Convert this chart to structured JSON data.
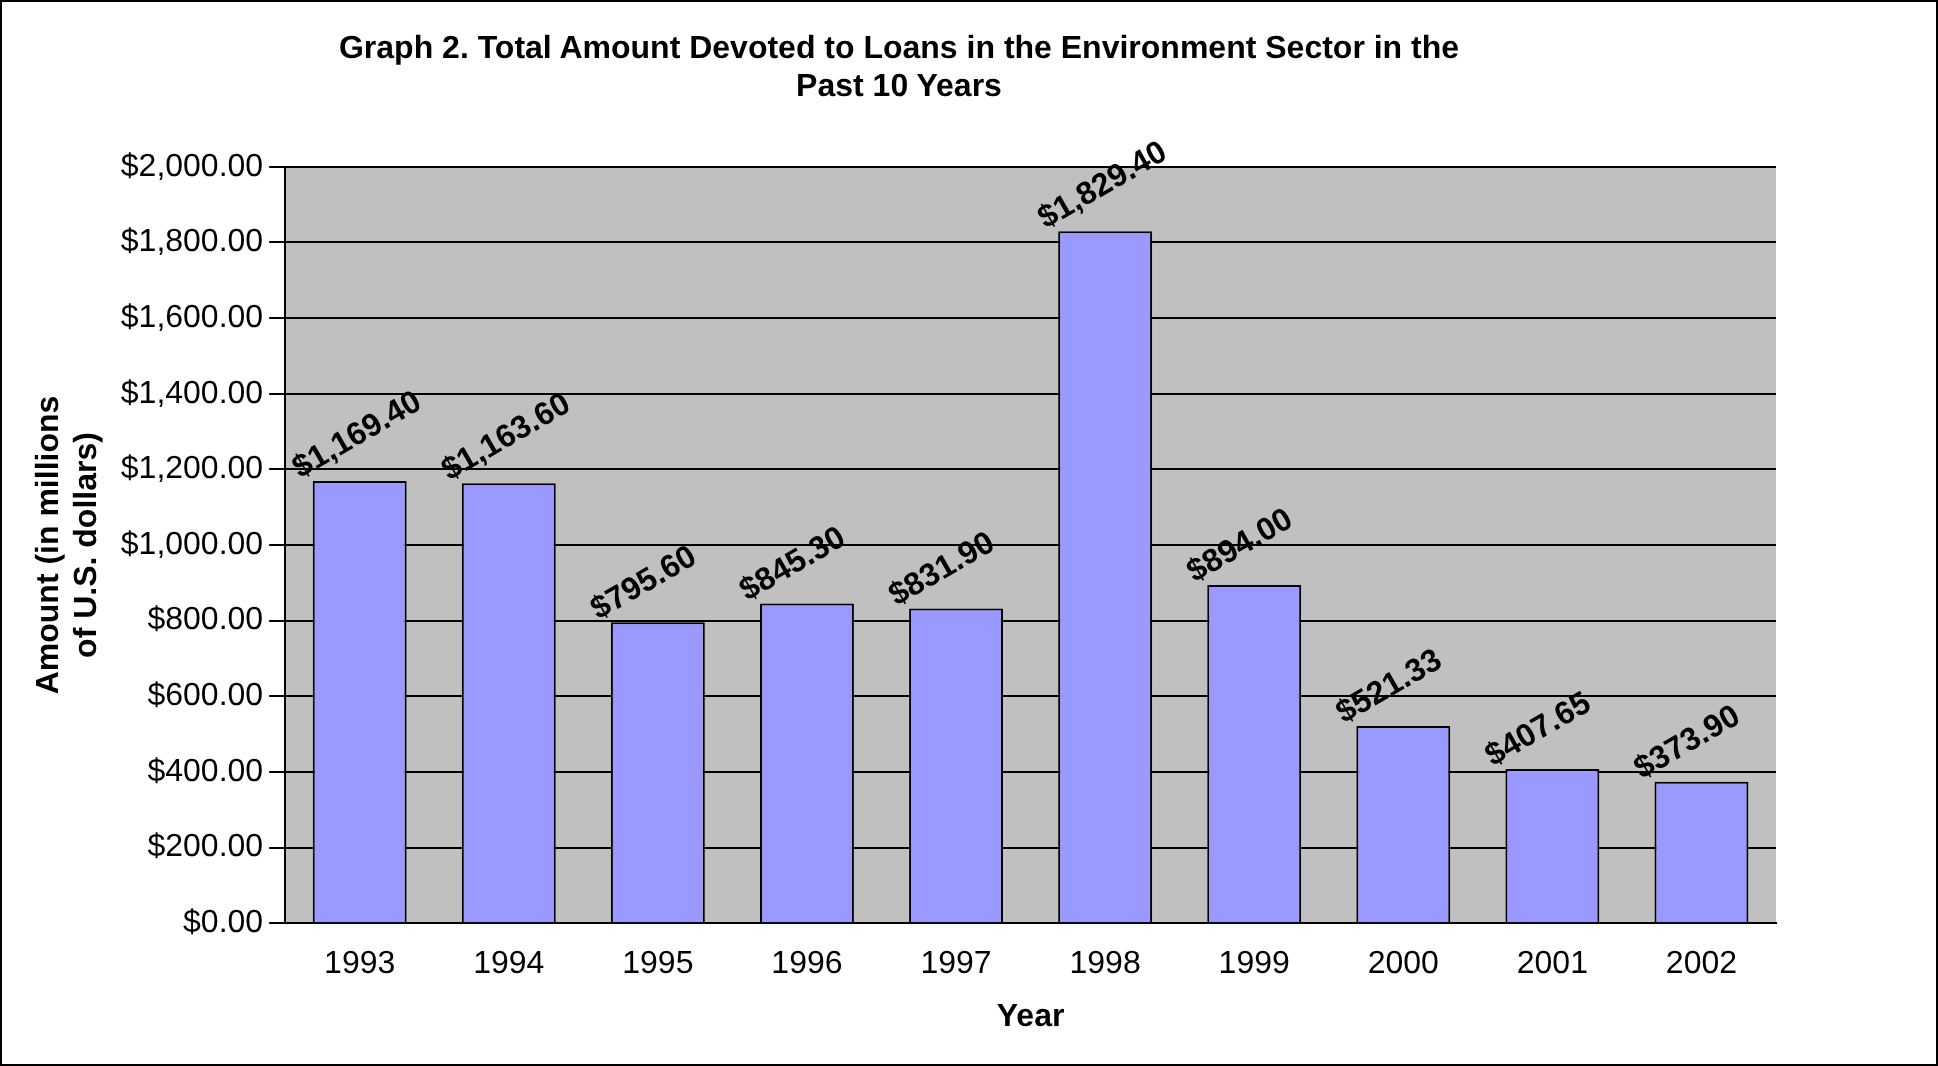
{
  "chart_data": {
    "type": "bar",
    "title": "Graph 2. Total Amount Devoted to Loans in the Environment Sector in the Past 10 Years",
    "xlabel": "Year",
    "ylabel": "Amount (in millions of U.S. dollars)",
    "categories": [
      "1993",
      "1994",
      "1995",
      "1996",
      "1997",
      "1998",
      "1999",
      "2000",
      "2001",
      "2002"
    ],
    "values": [
      1169.4,
      1163.6,
      795.6,
      845.3,
      831.9,
      1829.4,
      894.0,
      521.33,
      407.65,
      373.9
    ],
    "value_labels": [
      "$1,169.40",
      "$1,163.60",
      "$795.60",
      "$845.30",
      "$831.90",
      "$1,829.40",
      "$894.00",
      "$521.33",
      "$407.65",
      "$373.90"
    ],
    "color": "#9999ff",
    "ylim": [
      0,
      2000
    ],
    "yticks": [
      {
        "value": 0,
        "label": "$0.00"
      },
      {
        "value": 200,
        "label": "$200.00"
      },
      {
        "value": 400,
        "label": "$400.00"
      },
      {
        "value": 600,
        "label": "$600.00"
      },
      {
        "value": 800,
        "label": "$800.00"
      },
      {
        "value": 1000,
        "label": "$1,000.00"
      },
      {
        "value": 1200,
        "label": "$1,200.00"
      },
      {
        "value": 1400,
        "label": "$1,400.00"
      },
      {
        "value": 1600,
        "label": "$1,600.00"
      },
      {
        "value": 1800,
        "label": "$1,800.00"
      },
      {
        "value": 2000,
        "label": "$2,000.00"
      }
    ],
    "grid": "y",
    "legend": false
  }
}
